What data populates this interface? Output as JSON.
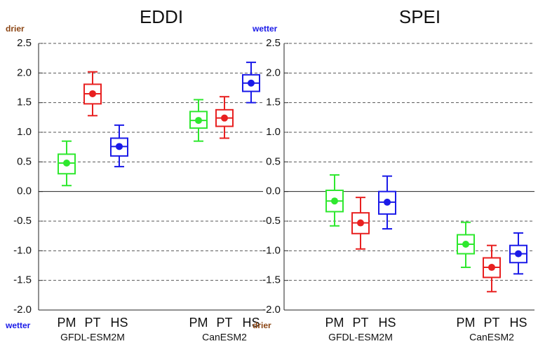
{
  "chart_data": [
    {
      "type": "box",
      "title": "EDDI",
      "top_label": "drier",
      "bottom_label": "wetter",
      "categories": [
        "GFDL-ESM2M",
        "CanESM2"
      ],
      "series": [
        {
          "name": "PM",
          "color": "#2ee82e",
          "min": [
            0.1,
            0.85
          ],
          "q1": [
            0.3,
            1.07
          ],
          "median": [
            0.48,
            1.2
          ],
          "q3": [
            0.63,
            1.35
          ],
          "max": [
            0.85,
            1.55
          ]
        },
        {
          "name": "PT",
          "color": "#e82020",
          "min": [
            1.28,
            0.9
          ],
          "q1": [
            1.48,
            1.1
          ],
          "median": [
            1.65,
            1.24
          ],
          "q3": [
            1.81,
            1.38
          ],
          "max": [
            2.02,
            1.6
          ]
        },
        {
          "name": "HS",
          "color": "#1a1ae8",
          "min": [
            0.42,
            1.5
          ],
          "q1": [
            0.6,
            1.69
          ],
          "median": [
            0.76,
            1.83
          ],
          "q3": [
            0.9,
            1.97
          ],
          "max": [
            1.12,
            2.18
          ]
        }
      ],
      "ylim": [
        -2,
        2.5
      ],
      "yticks": [
        2.5,
        {
          "value": 2,
          "label": "2.0"
        },
        1.5,
        {
          "value": 1,
          "label": "1.0"
        },
        0.5,
        {
          "value": 0,
          "label": "0.0"
        },
        -0.5,
        {
          "value": -1,
          "label": "-1.0"
        },
        -1.5,
        {
          "value": -2,
          "label": "-2.0"
        }
      ],
      "grid": true
    },
    {
      "type": "box",
      "title": "SPEI",
      "top_label": "wetter",
      "bottom_label": "drier",
      "categories": [
        "GFDL-ESM2M",
        "CanESM2"
      ],
      "series": [
        {
          "name": "PM",
          "color": "#2ee82e",
          "min": [
            -0.58,
            -1.28
          ],
          "q1": [
            -0.34,
            -1.05
          ],
          "median": [
            -0.16,
            -0.89
          ],
          "q3": [
            0.02,
            -0.73
          ],
          "max": [
            0.28,
            -0.52
          ]
        },
        {
          "name": "PT",
          "color": "#e82020",
          "min": [
            -0.97,
            -1.69
          ],
          "q1": [
            -0.71,
            -1.45
          ],
          "median": [
            -0.53,
            -1.28
          ],
          "q3": [
            -0.36,
            -1.12
          ],
          "max": [
            -0.1,
            -0.91
          ]
        },
        {
          "name": "HS",
          "color": "#1a1ae8",
          "min": [
            -0.63,
            -1.39
          ],
          "q1": [
            -0.38,
            -1.2
          ],
          "median": [
            -0.18,
            -1.05
          ],
          "q3": [
            0,
            -0.91
          ],
          "max": [
            0.26,
            -0.7
          ]
        }
      ],
      "ylim": [
        -2,
        2.5
      ],
      "yticks": [
        2.5,
        {
          "value": 2,
          "label": "2.0"
        },
        1.5,
        {
          "value": 1,
          "label": "1.0"
        },
        0.5,
        {
          "value": 0,
          "label": "0.0"
        },
        -0.5,
        {
          "value": -1,
          "label": "-1.0"
        },
        -1.5,
        {
          "value": -2,
          "label": "-2.0"
        }
      ],
      "grid": true
    }
  ]
}
